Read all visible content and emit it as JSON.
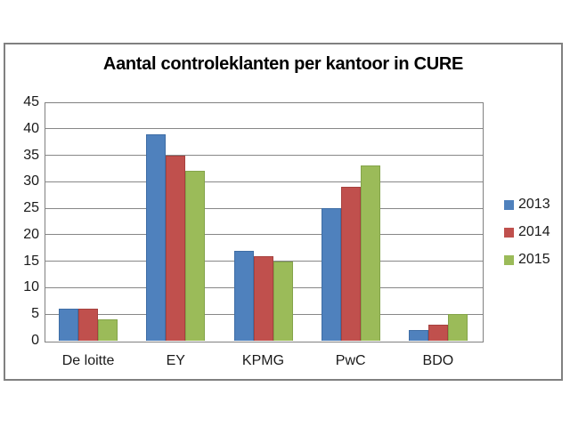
{
  "window": {
    "background_color": "#FFFFFF"
  },
  "chart_data": {
    "type": "bar",
    "title": "Aantal controleklanten per kantoor in CURE",
    "categories": [
      "De loitte",
      "EY",
      "KPMG",
      "PwC",
      "BDO"
    ],
    "series": [
      {
        "name": "2013",
        "color": "#4F81BD",
        "edge_color": "#3E6DA5",
        "values": [
          6,
          39,
          17,
          25,
          2
        ]
      },
      {
        "name": "2014",
        "color": "#C0504D",
        "edge_color": "#A6413E",
        "values": [
          6,
          35,
          16,
          29,
          3
        ]
      },
      {
        "name": "2015",
        "color": "#9BBB59",
        "edge_color": "#84A44A",
        "values": [
          4,
          32,
          15,
          33,
          5
        ]
      }
    ],
    "xlabel": "",
    "ylabel": "",
    "ylim": [
      0,
      45
    ],
    "yticks": [
      0,
      5,
      10,
      15,
      20,
      25,
      30,
      35,
      40,
      45
    ],
    "grid": true,
    "legend_position": "right",
    "legend_entries": [
      "2013",
      "2014",
      "2015"
    ]
  },
  "styles": {
    "outer_border_color": "#808080",
    "plot_border_color": "#808080",
    "gridline_color": "#878787",
    "title_color": "#000000",
    "label_color": "#1A1A1A"
  }
}
